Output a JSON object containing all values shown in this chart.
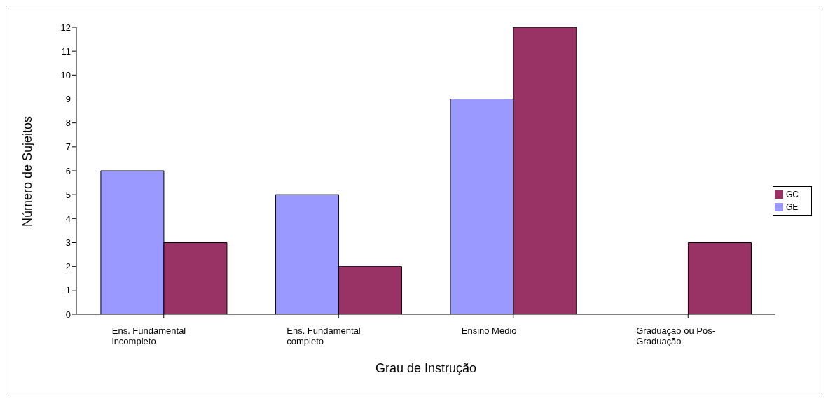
{
  "chart_data": {
    "type": "bar",
    "xlabel": "Grau de Instrução",
    "ylabel": "Número de Sujeitos",
    "categories": [
      "Ens. Fundamental incompleto",
      "Ens. Fundamental completo",
      "Ensino Médio",
      "Graduação ou Pós-Graduação"
    ],
    "series": [
      {
        "name": "GE",
        "color": "#9999ff",
        "values": [
          6,
          5,
          9,
          0
        ]
      },
      {
        "name": "GC",
        "color": "#993366",
        "values": [
          3,
          2,
          12,
          3
        ]
      }
    ],
    "ylim": [
      0,
      12
    ],
    "yticks": [
      0,
      1,
      2,
      3,
      4,
      5,
      6,
      7,
      8,
      9,
      10,
      11,
      12
    ],
    "grid": false,
    "legend": "right"
  }
}
